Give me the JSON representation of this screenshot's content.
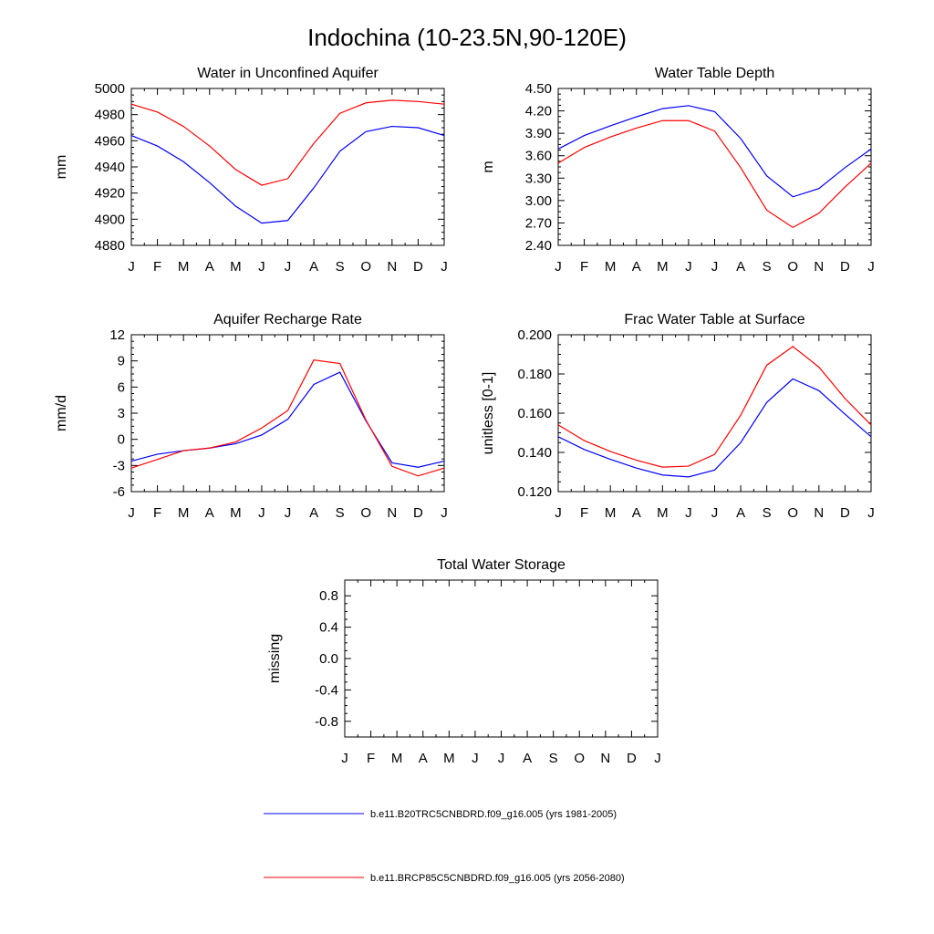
{
  "page_title": "Indochina (10-23.5N,90-120E)",
  "colors": {
    "series1": "#0000ff",
    "series2": "#ff0000"
  },
  "months": [
    "J",
    "F",
    "M",
    "A",
    "M",
    "J",
    "J",
    "A",
    "S",
    "O",
    "N",
    "D",
    "J"
  ],
  "legend": [
    {
      "label": "b.e11.B20TRC5CNBDRD.f09_g16.005 (yrs 1981-2005)",
      "color": "#0000ff"
    },
    {
      "label": "b.e11.BRCP85C5CNBDRD.f09_g16.005 (yrs 2056-2080)",
      "color": "#ff0000"
    }
  ],
  "chart_data": [
    {
      "type": "line",
      "title": "Water in Unconfined Aquifer",
      "ylabel": "mm",
      "ylim": [
        4880,
        5000
      ],
      "yticks": [
        4880,
        4900,
        4920,
        4940,
        4960,
        4980,
        5000
      ],
      "ytick_labels": [
        "4880",
        "4900",
        "4920",
        "4940",
        "4960",
        "4980",
        "5000"
      ],
      "series": [
        {
          "name": "b.e11.B20TRC5CNBDRD.f09_g16.005 (yrs 1981-2005)",
          "values": [
            4964,
            4956,
            4944,
            4928,
            4910,
            4897,
            4899,
            4924,
            4952,
            4967,
            4971,
            4970,
            4964
          ]
        },
        {
          "name": "b.e11.BRCP85C5CNBDRD.f09_g16.005 (yrs 2056-2080)",
          "values": [
            4988,
            4982,
            4971,
            4956,
            4938,
            4926,
            4931,
            4958,
            4981,
            4989,
            4991,
            4990,
            4988
          ]
        }
      ]
    },
    {
      "type": "line",
      "title": "Water Table Depth",
      "ylabel": "m",
      "ylim": [
        2.4,
        4.5
      ],
      "yticks": [
        2.4,
        2.7,
        3.0,
        3.3,
        3.6,
        3.9,
        4.2,
        4.5
      ],
      "ytick_labels": [
        "2.40",
        "2.70",
        "3.00",
        "3.30",
        "3.60",
        "3.90",
        "4.20",
        "4.50"
      ],
      "series": [
        {
          "name": "b.e11.B20TRC5CNBDRD.f09_g16.005 (yrs 1981-2005)",
          "values": [
            3.69,
            3.87,
            4.0,
            4.12,
            4.23,
            4.27,
            4.19,
            3.83,
            3.33,
            3.05,
            3.16,
            3.44,
            3.69
          ]
        },
        {
          "name": "b.e11.BRCP85C5CNBDRD.f09_g16.005 (yrs 2056-2080)",
          "values": [
            3.5,
            3.71,
            3.85,
            3.97,
            4.07,
            4.07,
            3.93,
            3.44,
            2.87,
            2.64,
            2.83,
            3.18,
            3.5
          ]
        }
      ]
    },
    {
      "type": "line",
      "title": "Aquifer Recharge Rate",
      "ylabel": "mm/d",
      "ylim": [
        -6,
        12
      ],
      "yticks": [
        -6,
        -3,
        0,
        3,
        6,
        9,
        12
      ],
      "ytick_labels": [
        "-6",
        "-3",
        "0",
        "3",
        "6",
        "9",
        "12"
      ],
      "series": [
        {
          "name": "b.e11.B20TRC5CNBDRD.f09_g16.005 (yrs 1981-2005)",
          "values": [
            -2.5,
            -1.7,
            -1.3,
            -1.0,
            -0.5,
            0.5,
            2.3,
            6.3,
            7.7,
            2.1,
            -2.7,
            -3.2,
            -2.5
          ]
        },
        {
          "name": "b.e11.BRCP85C5CNBDRD.f09_g16.005 (yrs 2056-2080)",
          "values": [
            -3.3,
            -2.3,
            -1.3,
            -1.0,
            -0.3,
            1.3,
            3.3,
            9.1,
            8.7,
            2.2,
            -3.1,
            -4.2,
            -3.3
          ]
        }
      ]
    },
    {
      "type": "line",
      "title": "Frac Water Table at Surface",
      "ylabel": "unitless [0-1]",
      "ylim": [
        0.12,
        0.2
      ],
      "yticks": [
        0.12,
        0.14,
        0.16,
        0.18,
        0.2
      ],
      "ytick_labels": [
        "0.120",
        "0.140",
        "0.160",
        "0.180",
        "0.200"
      ],
      "series": [
        {
          "name": "b.e11.B20TRC5CNBDRD.f09_g16.005 (yrs 1981-2005)",
          "values": [
            0.148,
            0.1415,
            0.1365,
            0.132,
            0.1285,
            0.1275,
            0.131,
            0.145,
            0.1655,
            0.1775,
            0.1715,
            0.1595,
            0.148
          ]
        },
        {
          "name": "b.e11.BRCP85C5CNBDRD.f09_g16.005 (yrs 2056-2080)",
          "values": [
            0.154,
            0.146,
            0.1405,
            0.136,
            0.1325,
            0.133,
            0.139,
            0.159,
            0.1845,
            0.194,
            0.1835,
            0.1675,
            0.154
          ]
        }
      ]
    },
    {
      "type": "line",
      "title": "Total Water Storage",
      "ylabel": "missing",
      "ylim": [
        -1.0,
        1.0
      ],
      "yticks": [
        -0.8,
        -0.4,
        0.0,
        0.4,
        0.8
      ],
      "ytick_labels": [
        "-0.8",
        "-0.4",
        "0.0",
        "0.4",
        "0.8"
      ],
      "series": []
    }
  ]
}
